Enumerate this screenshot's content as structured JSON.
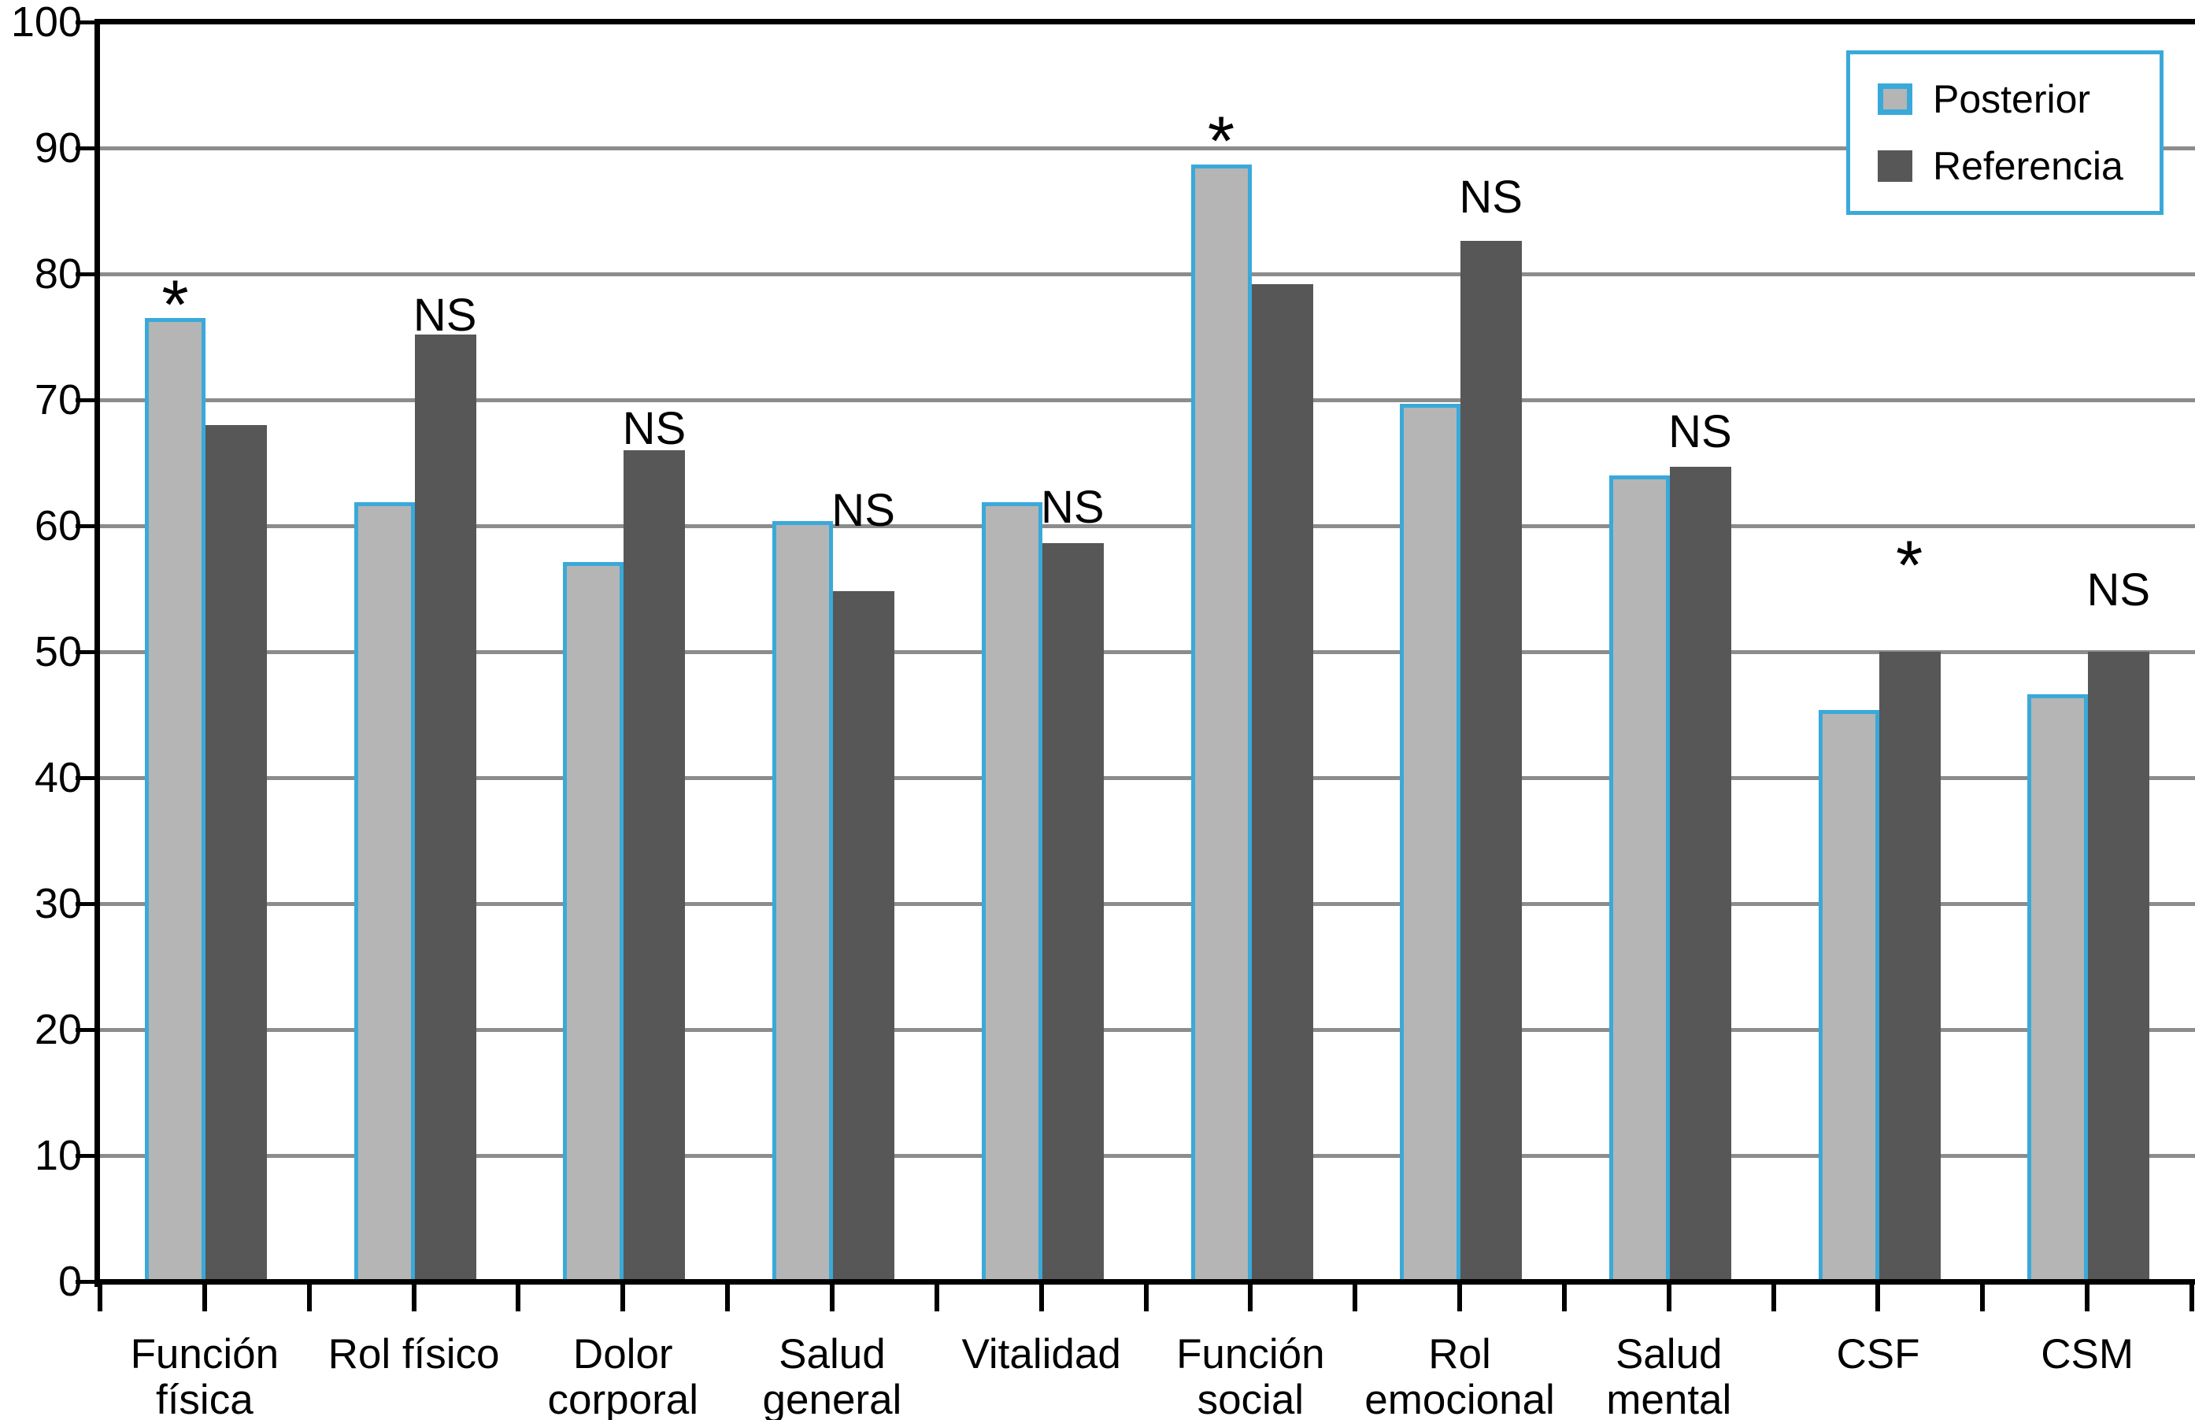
{
  "chart_data": {
    "type": "bar",
    "title": "",
    "xlabel": "",
    "ylabel": "",
    "ylim": [
      0,
      100
    ],
    "ytick_step": 10,
    "yticks": [
      "0",
      "10",
      "20",
      "30",
      "40",
      "50",
      "60",
      "70",
      "80",
      "90",
      "100"
    ],
    "grid": true,
    "legend_position": "top-right",
    "categories": [
      [
        "Función",
        "física"
      ],
      [
        "Rol físico"
      ],
      [
        "Dolor",
        "corporal"
      ],
      [
        "Salud",
        "general"
      ],
      [
        "Vitalidad"
      ],
      [
        "Función",
        "social"
      ],
      [
        "Rol",
        "emocional"
      ],
      [
        "Salud",
        "mental"
      ],
      [
        "CSF"
      ],
      [
        "CSM"
      ]
    ],
    "series": [
      {
        "name": "Posterior",
        "values": [
          76.5,
          61.9,
          57.1,
          60.4,
          61.9,
          88.7,
          69.7,
          64.0,
          45.4,
          46.6
        ]
      },
      {
        "name": "Referencia",
        "values": [
          68.0,
          75.2,
          66.0,
          54.8,
          58.6,
          79.2,
          82.6,
          64.7,
          50.0,
          50.0
        ]
      }
    ],
    "annotations": [
      {
        "text": "*",
        "group": 0,
        "anchor": "posterior",
        "y": 77.2
      },
      {
        "text": "NS",
        "group": 1,
        "anchor": "referencia",
        "y": 75.6
      },
      {
        "text": "NS",
        "group": 2,
        "anchor": "referencia",
        "y": 66.6
      },
      {
        "text": "NS",
        "group": 3,
        "anchor": "referencia",
        "y": 60.1
      },
      {
        "text": "NS",
        "group": 4,
        "anchor": "referencia",
        "y": 60.4
      },
      {
        "text": "*",
        "group": 5,
        "anchor": "posterior",
        "y": 90.2
      },
      {
        "text": "NS",
        "group": 6,
        "anchor": "referencia",
        "y": 85.0
      },
      {
        "text": "NS",
        "group": 7,
        "anchor": "referencia",
        "y": 66.4
      },
      {
        "text": "*",
        "group": 8,
        "anchor": "referencia",
        "y": 56.5
      },
      {
        "text": "NS",
        "group": 9,
        "anchor": "referencia",
        "y": 53.8
      }
    ]
  },
  "legend": {
    "items": [
      {
        "label": "Posterior",
        "swatch": "posterior"
      },
      {
        "label": "Referencia",
        "swatch": "referencia"
      }
    ]
  },
  "colors": {
    "posterior_fill": "#b5b5b5",
    "posterior_border": "#3aa9d9",
    "referencia_fill": "#575757",
    "gridline": "#8c8c8c",
    "axis": "#000000",
    "background": "#ffffff"
  }
}
